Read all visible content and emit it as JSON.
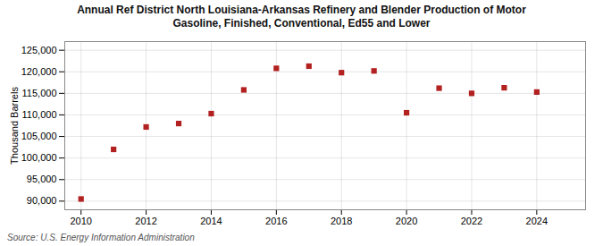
{
  "chart_data": {
    "type": "scatter",
    "title": [
      "Annual Ref District North Louisiana-Arkansas Refinery and Blender Production of Motor",
      "Gasoline, Finished, Conventional, Ed55 and Lower"
    ],
    "ylabel": "Thousand Barrels",
    "source": "Source: U.S. Energy Information Administration",
    "color": "#b22020",
    "marker": "square",
    "x": [
      2010,
      2011,
      2012,
      2013,
      2014,
      2015,
      2016,
      2017,
      2018,
      2019,
      2020,
      2021,
      2022,
      2023,
      2024
    ],
    "values": [
      90500,
      102000,
      107200,
      108000,
      110300,
      115800,
      120800,
      121300,
      119800,
      120200,
      110500,
      116200,
      115000,
      116300,
      115300
    ],
    "xlim": [
      2009.5,
      2025.5
    ],
    "ylim": [
      88000,
      127000
    ],
    "xticks": [
      2010,
      2012,
      2014,
      2016,
      2018,
      2020,
      2022,
      2024
    ],
    "yticks": [
      {
        "value": 90000,
        "label": "90,000"
      },
      {
        "value": 95000,
        "label": "95,000"
      },
      {
        "value": 100000,
        "label": "100,000"
      },
      {
        "value": 105000,
        "label": "105,000"
      },
      {
        "value": 110000,
        "label": "110,000"
      },
      {
        "value": 115000,
        "label": "115,000"
      },
      {
        "value": 120000,
        "label": "120,000"
      },
      {
        "value": 125000,
        "label": "125,000"
      }
    ],
    "grid": true
  }
}
